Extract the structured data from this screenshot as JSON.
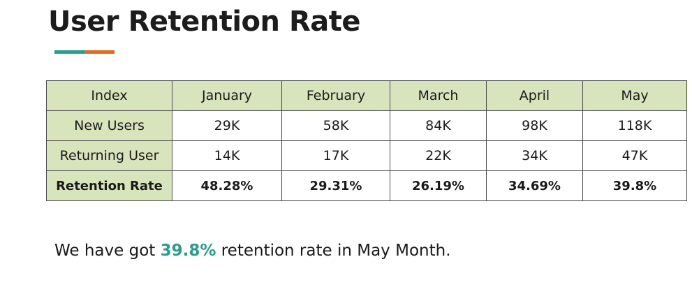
{
  "title": "User Retention Rate",
  "colors": {
    "accent_teal": "#2a9d8f",
    "accent_orange": "#e06b23",
    "header_fill": "#d8e4bc",
    "highlight": "#2a9d8f"
  },
  "table": {
    "header": [
      "Index",
      "January",
      "February",
      "March",
      "April",
      "May"
    ],
    "rows": [
      {
        "label": "New Users",
        "values": [
          "29K",
          "58K",
          "84K",
          "98K",
          "118K"
        ]
      },
      {
        "label": "Returning User",
        "values": [
          "14K",
          "17K",
          "22K",
          "34K",
          "47K"
        ]
      },
      {
        "label": "Retention Rate",
        "values": [
          "48.28%",
          "29.31%",
          "26.19%",
          "34.69%",
          "39.8%"
        ]
      }
    ]
  },
  "summary": {
    "prefix": "We have got ",
    "highlight": "39.8%",
    "suffix": " retention rate in May Month."
  }
}
